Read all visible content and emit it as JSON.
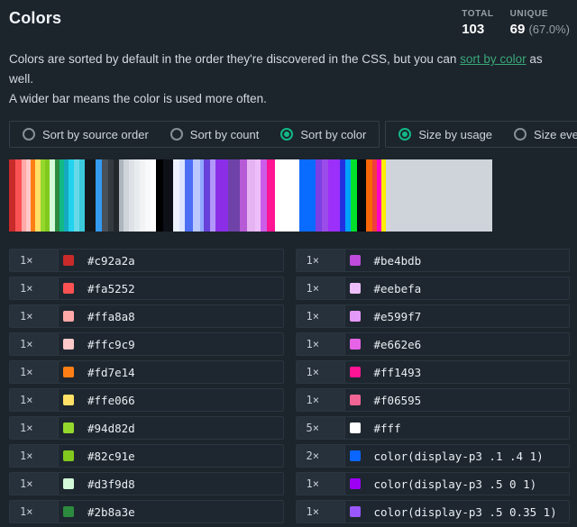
{
  "header": {
    "title": "Colors",
    "stats": [
      {
        "label": "TOTAL",
        "value": "103",
        "extra": ""
      },
      {
        "label": "UNIQUE",
        "value": "69",
        "extra": "(67.0%)"
      }
    ]
  },
  "intro": {
    "pre_link": "Colors are sorted by default in the order they're discovered in the CSS, but you can ",
    "link_text": "sort by color",
    "post_link": " as well.",
    "line2": "A wider bar means the color is used more often."
  },
  "controls": {
    "sort_group": [
      {
        "name": "sort-by-source-order",
        "label": "Sort by source order",
        "selected": false
      },
      {
        "name": "sort-by-count",
        "label": "Sort by count",
        "selected": false
      },
      {
        "name": "sort-by-color",
        "label": "Sort by color",
        "selected": true
      }
    ],
    "size_group": [
      {
        "name": "size-by-usage",
        "label": "Size by usage",
        "selected": true
      },
      {
        "name": "size-evenly",
        "label": "Size evenly",
        "selected": false
      }
    ]
  },
  "bar": {
    "stripes": [
      [
        "#c92a2a",
        7
      ],
      [
        "#fa5252",
        7
      ],
      [
        "#ffa8a8",
        5
      ],
      [
        "#ffc9c9",
        5
      ],
      [
        "#fd7e14",
        5
      ],
      [
        "#ffe066",
        6
      ],
      [
        "#94d82d",
        5
      ],
      [
        "#82c91e",
        5
      ],
      [
        "#d3f9d8",
        6
      ],
      [
        "#2b8a3e",
        5
      ],
      [
        "#12b886",
        5
      ],
      [
        "#15aabf",
        5
      ],
      [
        "#22d3ee",
        6
      ],
      [
        "#66d9e8",
        6
      ],
      [
        "#3bc9db",
        6
      ],
      [
        "#14181c",
        12
      ],
      [
        "#339af0",
        7
      ],
      [
        "#495057",
        7
      ],
      [
        "#343a40",
        6
      ],
      [
        "#23282d",
        6
      ],
      [
        "#adb5bd",
        5
      ],
      [
        "#ced4da",
        6
      ],
      [
        "#dee2e6",
        6
      ],
      [
        "#e9ecef",
        6
      ],
      [
        "#f1f3f5",
        6
      ],
      [
        "#f8f9fa",
        6
      ],
      [
        "#ffffff",
        6
      ],
      [
        "#000000",
        8
      ],
      [
        "#0d1117",
        11
      ],
      [
        "#edf2ff",
        7
      ],
      [
        "#dbe4ff",
        6
      ],
      [
        "#4c6ef5",
        9
      ],
      [
        "#bac8ff",
        8
      ],
      [
        "#91a7ff",
        4
      ],
      [
        "#6741d9",
        7
      ],
      [
        "#b197fc",
        6
      ],
      [
        "#8b2ee8",
        14
      ],
      [
        "#6f42a8",
        13
      ],
      [
        "#b75ad6",
        8
      ],
      [
        "#e5b3f2",
        9
      ],
      [
        "#eebefa",
        6
      ],
      [
        "#cc5de8",
        7
      ],
      [
        "#ff1493",
        9
      ],
      [
        "#ffffff",
        27
      ],
      [
        "#0a6bff",
        18
      ],
      [
        "#7b3fe4",
        7
      ],
      [
        "#9a4de8",
        7
      ],
      [
        "#9d2ffa",
        13
      ],
      [
        "#2430e0",
        6
      ],
      [
        "#00a3ff",
        6
      ],
      [
        "#00e02a",
        7
      ],
      [
        "#05080c",
        10
      ],
      [
        "#f76707",
        7
      ],
      [
        "#f03e3e",
        5
      ],
      [
        "#ff00c8",
        5
      ],
      [
        "#ffee00",
        5
      ],
      [
        "#ced4da",
        118
      ]
    ]
  },
  "colors": {
    "left": [
      {
        "count": "1×",
        "swatch": "#c92a2a",
        "label": "#c92a2a"
      },
      {
        "count": "1×",
        "swatch": "#fa5252",
        "label": "#fa5252"
      },
      {
        "count": "1×",
        "swatch": "#ffa8a8",
        "label": "#ffa8a8"
      },
      {
        "count": "1×",
        "swatch": "#ffc9c9",
        "label": "#ffc9c9"
      },
      {
        "count": "1×",
        "swatch": "#fd7e14",
        "label": "#fd7e14"
      },
      {
        "count": "1×",
        "swatch": "#ffe066",
        "label": "#ffe066"
      },
      {
        "count": "1×",
        "swatch": "#94d82d",
        "label": "#94d82d"
      },
      {
        "count": "1×",
        "swatch": "#82c91e",
        "label": "#82c91e"
      },
      {
        "count": "1×",
        "swatch": "#d3f9d8",
        "label": "#d3f9d8"
      },
      {
        "count": "1×",
        "swatch": "#2b8a3e",
        "label": "#2b8a3e"
      }
    ],
    "right": [
      {
        "count": "1×",
        "swatch": "#be4bdb",
        "label": "#be4bdb"
      },
      {
        "count": "1×",
        "swatch": "#eebefa",
        "label": "#eebefa"
      },
      {
        "count": "1×",
        "swatch": "#e599f7",
        "label": "#e599f7"
      },
      {
        "count": "1×",
        "swatch": "#e662e6",
        "label": "#e662e6"
      },
      {
        "count": "1×",
        "swatch": "#ff1493",
        "label": "#ff1493"
      },
      {
        "count": "1×",
        "swatch": "#f06595",
        "label": "#f06595"
      },
      {
        "count": "5×",
        "swatch": "#ffffff",
        "label": "#fff"
      },
      {
        "count": "2×",
        "swatch": "#0a66ff",
        "label": "color(display-p3 .1 .4 1)"
      },
      {
        "count": "1×",
        "swatch": "#9b00f5",
        "label": "color(display-p3 .5 0 1)"
      },
      {
        "count": "1×",
        "swatch": "#9a57ff",
        "label": "color(display-p3 .5 0.35 1)"
      }
    ]
  },
  "theme": {
    "page_bg": "#1c242c",
    "row_bg": "#1e2730",
    "count_cell_bg": "#27313b",
    "border": "#343f49",
    "accent_green": "#12b886",
    "link_green": "#3aa777",
    "text_muted": "#96a0a8"
  }
}
